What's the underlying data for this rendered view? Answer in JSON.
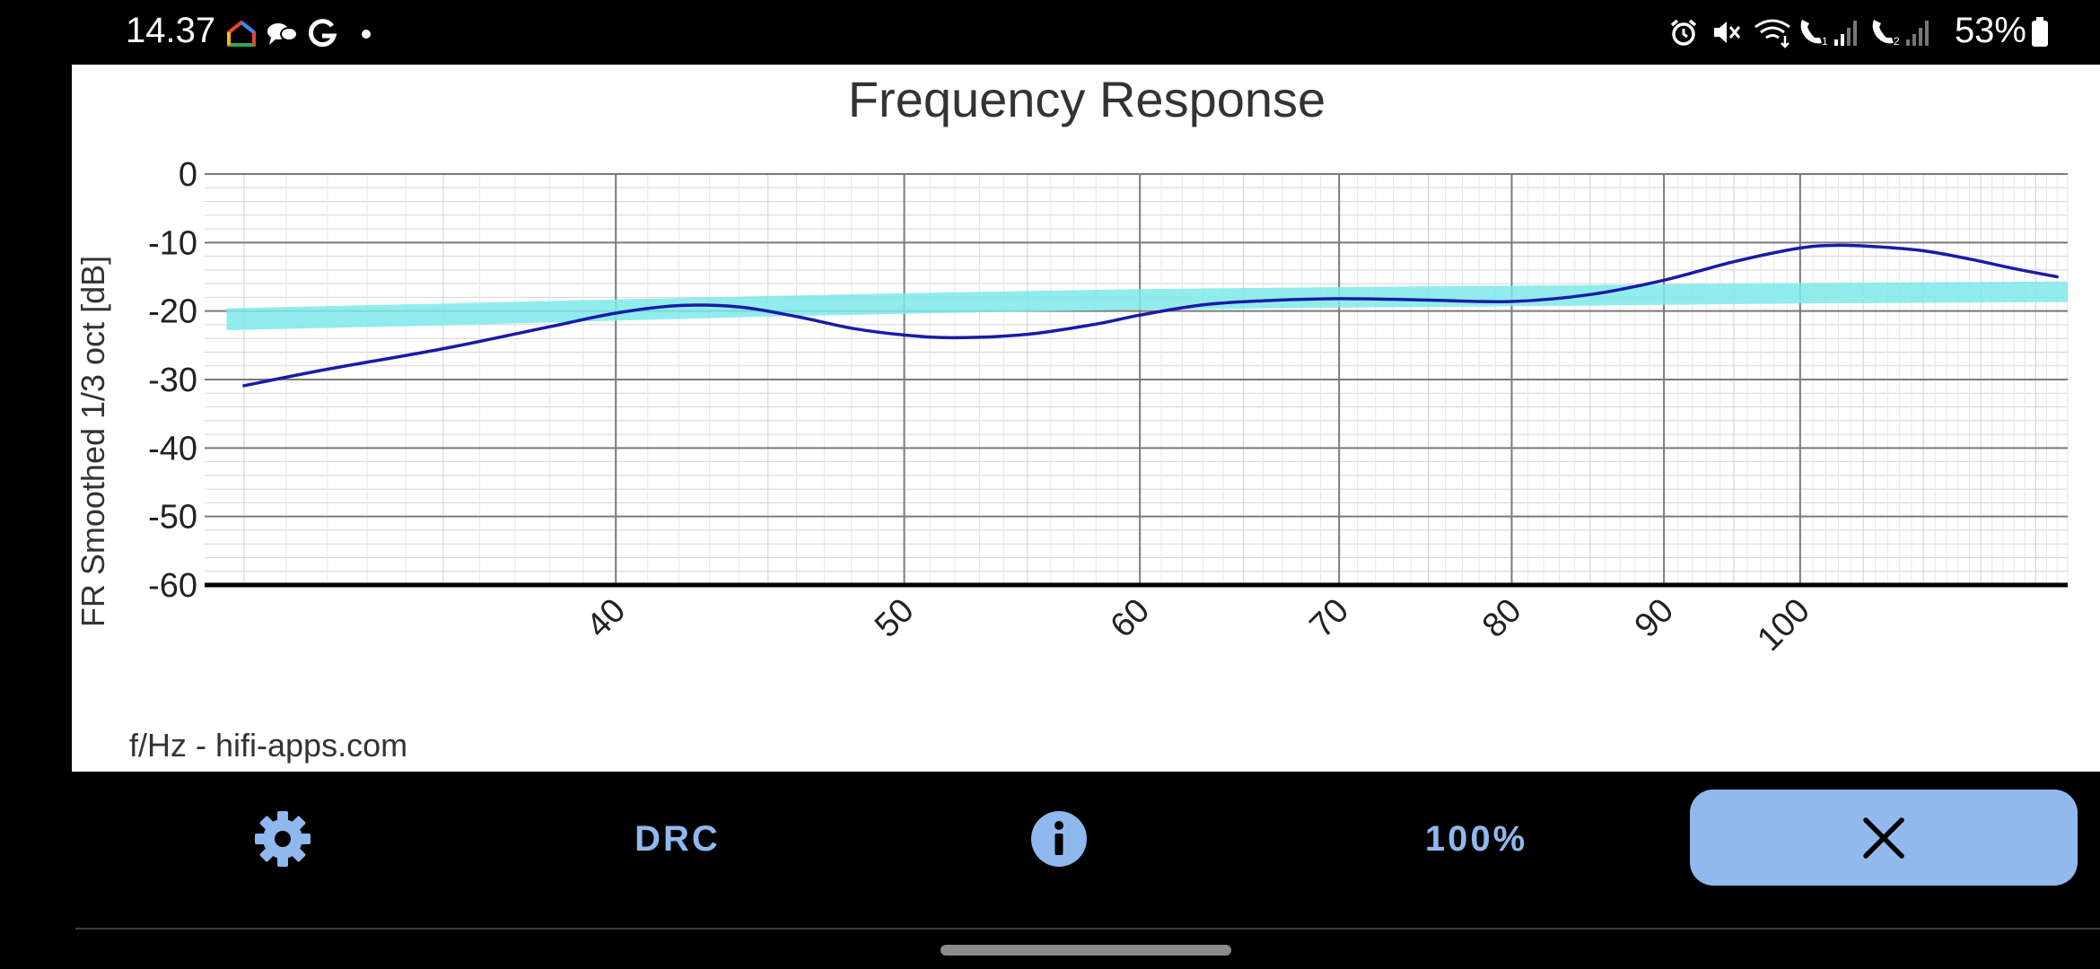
{
  "status_bar": {
    "time": "14.37",
    "battery": "53%",
    "icons": [
      "google-home-icon",
      "messages-icon",
      "google-icon",
      "dot-icon",
      "alarm-icon",
      "mute-icon",
      "wifi-calling-icon",
      "volte-1-icon",
      "signal-1-icon",
      "volte-2-icon",
      "signal-2-icon",
      "battery-icon"
    ]
  },
  "chart_data": {
    "type": "line",
    "title": "Frequency Response",
    "ylabel": "FR Smoothed 1/3 oct [dB]",
    "xlabel": "f/Hz - hifi-apps.com",
    "x_scale": "log",
    "xlim": [
      29.1,
      123
    ],
    "ylim": [
      -60,
      0
    ],
    "y_ticks": [
      "0",
      "-10",
      "-20",
      "-30",
      "-40",
      "-50",
      "-60"
    ],
    "y_tick_values": [
      0,
      -10,
      -20,
      -30,
      -40,
      -50,
      -60
    ],
    "x_ticks": [
      "40",
      "50",
      "60",
      "70",
      "80",
      "90",
      "100"
    ],
    "x_tick_values": [
      40,
      50,
      60,
      70,
      80,
      90,
      100
    ],
    "grid": true,
    "series": [
      {
        "role": "target-band",
        "color": "#7eeaea",
        "x": [
          29.6,
          35,
          40,
          45,
          50,
          60,
          70,
          80,
          90,
          100,
          110,
          123
        ],
        "upper": [
          -19.6,
          -18.9,
          -18.3,
          -17.8,
          -17.4,
          -16.8,
          -16.5,
          -16.3,
          -16.1,
          -15.9,
          -15.8,
          -15.7
        ],
        "lower": [
          -22.8,
          -22.1,
          -21.4,
          -20.8,
          -20.4,
          -19.8,
          -19.5,
          -19.3,
          -19.1,
          -18.9,
          -18.8,
          -18.7
        ]
      },
      {
        "role": "measured",
        "color": "#1a1aa8",
        "x": [
          30,
          32,
          35,
          38,
          40,
          42,
          44,
          46,
          48,
          50,
          52,
          55,
          58,
          60,
          63,
          66,
          70,
          75,
          80,
          85,
          90,
          95,
          100,
          103,
          106,
          110,
          114,
          118,
          122
        ],
        "y": [
          -30.9,
          -28.5,
          -25.5,
          -22.3,
          -20.3,
          -19.2,
          -19.4,
          -20.8,
          -22.5,
          -23.5,
          -23.9,
          -23.4,
          -21.9,
          -20.6,
          -19.1,
          -18.5,
          -18.2,
          -18.4,
          -18.6,
          -17.6,
          -15.5,
          -12.8,
          -10.8,
          -10.4,
          -10.6,
          -11.2,
          -12.4,
          -13.8,
          -15.0
        ]
      }
    ]
  },
  "bottom_bar": {
    "settings_icon": "gear-icon",
    "drc_label": "DRC",
    "info_icon": "info-icon",
    "zoom_label": "100%",
    "close_icon": "close-icon",
    "accent_color": "#8fb8ee"
  }
}
